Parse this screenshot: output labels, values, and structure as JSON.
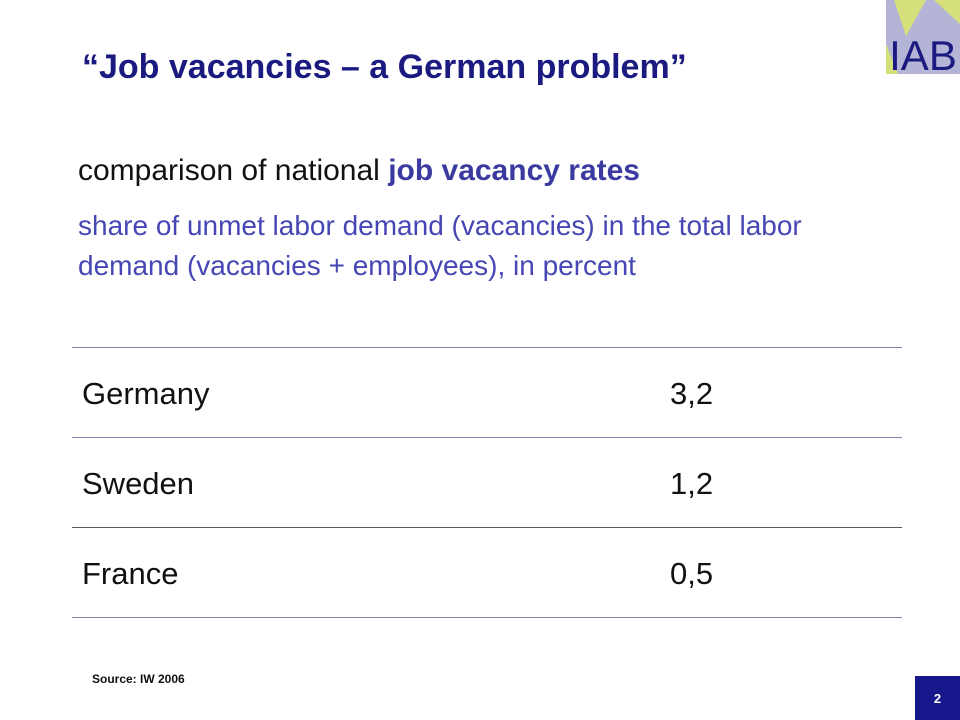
{
  "slide": {
    "title": "“Job vacancies – a German problem”",
    "heading_plain": "comparison of national ",
    "heading_highlight": "job vacancy rates",
    "subtitle": "share of unmet labor demand (vacancies) in the total labor demand (vacancies + employees), in percent",
    "rows": [
      {
        "country": "Germany",
        "value": "3,2"
      },
      {
        "country": "Sweden",
        "value": "1,2"
      },
      {
        "country": "France",
        "value": "0,5"
      }
    ],
    "source": "Source: IW 2006",
    "page_number": "2"
  },
  "logo": {
    "text": "IAB",
    "colors": {
      "background": "#b4b4d6",
      "accent": "#d6e07a",
      "text": "#1a1a80"
    }
  }
}
